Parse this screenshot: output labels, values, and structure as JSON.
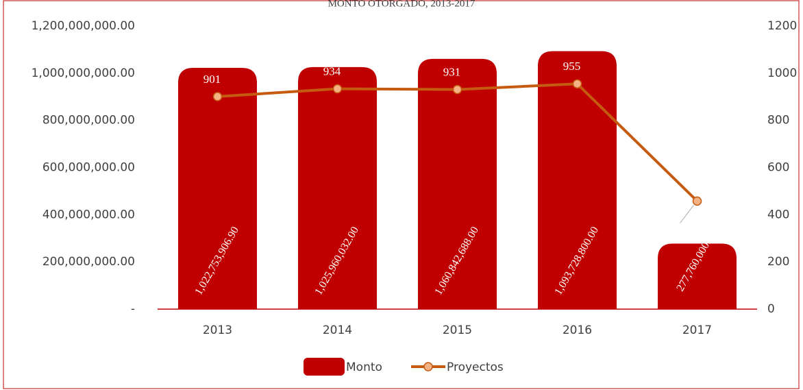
{
  "chart_data": {
    "type": "bar",
    "title": "MONTO OTORGADO, 2013-2017",
    "categories": [
      "2013",
      "2014",
      "2015",
      "2016",
      "2017"
    ],
    "series": [
      {
        "name": "Monto",
        "type": "bar",
        "color": "#c00000",
        "values": [
          1022753906.9,
          1025960032,
          1060842688,
          1093728800,
          277760000
        ],
        "value_labels": [
          "1,022,753,906.90",
          "1,025,960,032.00",
          "1,060,842,688.00",
          "1,093,728,800.00",
          "277,760,000.00"
        ]
      },
      {
        "name": "Proyectos",
        "type": "line",
        "axis": "y2",
        "color": "#c55a11",
        "marker_color": "#f4b183",
        "values": [
          901,
          934,
          931,
          955,
          458
        ]
      }
    ],
    "ylim": [
      0,
      1200000000
    ],
    "yticks": [
      {
        "value": 0,
        "label": "-"
      },
      {
        "value": 200000000,
        "label": "200,000,000.00"
      },
      {
        "value": 400000000,
        "label": "400,000,000.00"
      },
      {
        "value": 600000000,
        "label": "600,000,000.00"
      },
      {
        "value": 800000000,
        "label": "800,000,000.00"
      },
      {
        "value": 1000000000,
        "label": "1,000,000,000.00"
      },
      {
        "value": 1200000000,
        "label": "1,200,000,000.00"
      }
    ],
    "y2lim": [
      0,
      1200
    ],
    "y2ticks": [
      0,
      200,
      400,
      600,
      800,
      1000,
      1200
    ],
    "legend": "bottom"
  }
}
